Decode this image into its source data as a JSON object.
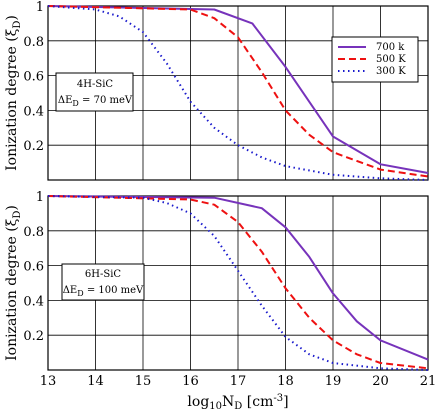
{
  "chart_data": {
    "type": "line",
    "xlabel": {
      "base": "log",
      "sub": "10",
      "n": "N",
      "nsub": "D",
      "unit_open": "[cm",
      "unit_exp": "-3",
      "unit_close": "]"
    },
    "ylabel": {
      "text": "Ionization degree (ξ",
      "sub": "D",
      "close": ")"
    },
    "xlim": [
      13,
      21
    ],
    "x_ticks": [
      "13",
      "14",
      "15",
      "16",
      "17",
      "18",
      "19",
      "20",
      "21"
    ],
    "legend": {
      "placement": "upper right of top panel",
      "entries": [
        {
          "label": "700 k",
          "color": "#7733bb",
          "style": "solid"
        },
        {
          "label": "500 K",
          "color": "#ee1111",
          "style": "dashed"
        },
        {
          "label": "300 K",
          "color": "#1a1acc",
          "style": "dotted"
        }
      ]
    },
    "panels": [
      {
        "ylim": [
          0,
          1.0
        ],
        "y_ticks": [
          "1",
          "0.8",
          "0.6",
          "0.4",
          "0.2"
        ],
        "grid": true,
        "annotation": {
          "line1": "4H-SiC",
          "prefix": "ΔE",
          "sub": "D",
          "suffix": " = 70 meV"
        },
        "series": [
          {
            "color": "#7733bb",
            "style": "solid",
            "x": [
              13,
              16.5,
              17.3,
              18.0,
              19.0,
              20.0,
              21.0
            ],
            "y": [
              1.0,
              0.98,
              0.9,
              0.65,
              0.25,
              0.09,
              0.04
            ]
          },
          {
            "color": "#ee1111",
            "style": "dashed",
            "x": [
              13,
              16,
              16.5,
              17.0,
              17.5,
              18.0,
              18.5,
              19.0,
              20.0,
              21.0
            ],
            "y": [
              1.0,
              0.98,
              0.93,
              0.82,
              0.62,
              0.4,
              0.26,
              0.16,
              0.06,
              0.02
            ]
          },
          {
            "color": "#1a1acc",
            "style": "dotted",
            "x": [
              13,
              14,
              14.5,
              15.0,
              15.5,
              16.0,
              16.5,
              17.0,
              17.5,
              18.0,
              19.0,
              20.0,
              21.0
            ],
            "y": [
              1.0,
              0.98,
              0.94,
              0.85,
              0.67,
              0.45,
              0.3,
              0.2,
              0.13,
              0.08,
              0.03,
              0.01,
              0.0
            ]
          }
        ]
      },
      {
        "ylim": [
          0,
          1.0
        ],
        "y_ticks": [
          "1",
          "0.8",
          "0.6",
          "0.4",
          "0.2"
        ],
        "grid": true,
        "annotation": {
          "line1": "6H-SiC",
          "prefix": "ΔE",
          "sub": "D",
          "suffix": " = 100 meV"
        },
        "series": [
          {
            "color": "#7733bb",
            "style": "solid",
            "x": [
              13,
              16.5,
              17.5,
              18.0,
              18.5,
              19.0,
              19.5,
              20.0,
              21.0
            ],
            "y": [
              1.0,
              0.99,
              0.93,
              0.82,
              0.65,
              0.44,
              0.28,
              0.17,
              0.06
            ]
          },
          {
            "color": "#ee1111",
            "style": "dashed",
            "x": [
              13,
              16,
              16.5,
              17.0,
              17.5,
              18.0,
              18.5,
              19.0,
              19.5,
              20.0,
              21.0
            ],
            "y": [
              1.0,
              0.98,
              0.95,
              0.85,
              0.68,
              0.47,
              0.3,
              0.17,
              0.09,
              0.04,
              0.01
            ]
          },
          {
            "color": "#1a1acc",
            "style": "dotted",
            "x": [
              13,
              15,
              15.5,
              16.0,
              16.5,
              17.0,
              17.5,
              18.0,
              18.5,
              19.0,
              20.0,
              21.0
            ],
            "y": [
              1.0,
              0.99,
              0.96,
              0.9,
              0.77,
              0.57,
              0.37,
              0.19,
              0.09,
              0.04,
              0.01,
              0.0
            ]
          }
        ]
      }
    ]
  }
}
